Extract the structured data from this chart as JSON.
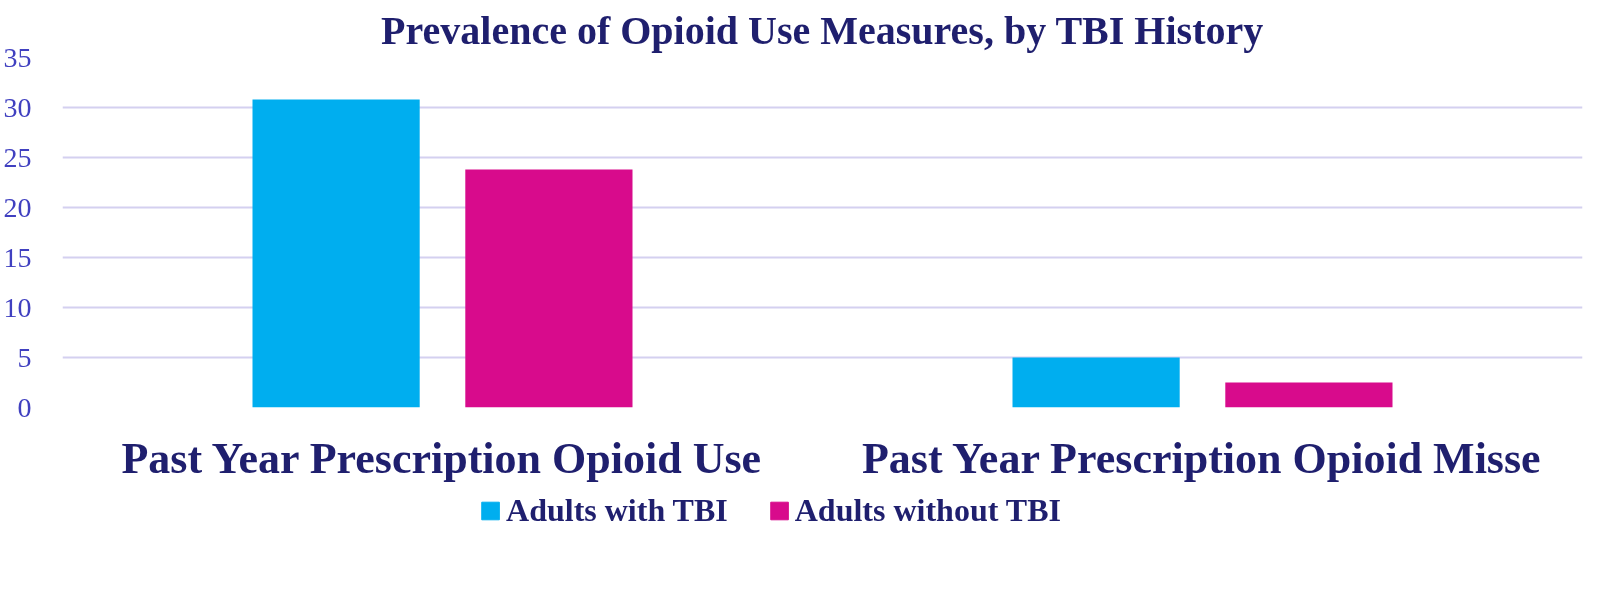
{
  "chart_data": {
    "type": "bar",
    "title": "Prevalence of Opioid Use Measures, by TBI History",
    "categories": [
      "Past Year Prescription Opioid Use",
      "Past Year Prescription Opioid Misse"
    ],
    "series": [
      {
        "name": "Adults with TBI",
        "color": "#00aeef",
        "values": [
          30.8,
          5.0
        ]
      },
      {
        "name": "Adults without TBI",
        "color": "#d80b8c",
        "values": [
          23.8,
          2.5
        ]
      }
    ],
    "ylim": [
      0,
      35
    ],
    "yticks": [
      0,
      5,
      10,
      15,
      20,
      25,
      30,
      35
    ],
    "grid": "y",
    "legend": "bottom"
  }
}
